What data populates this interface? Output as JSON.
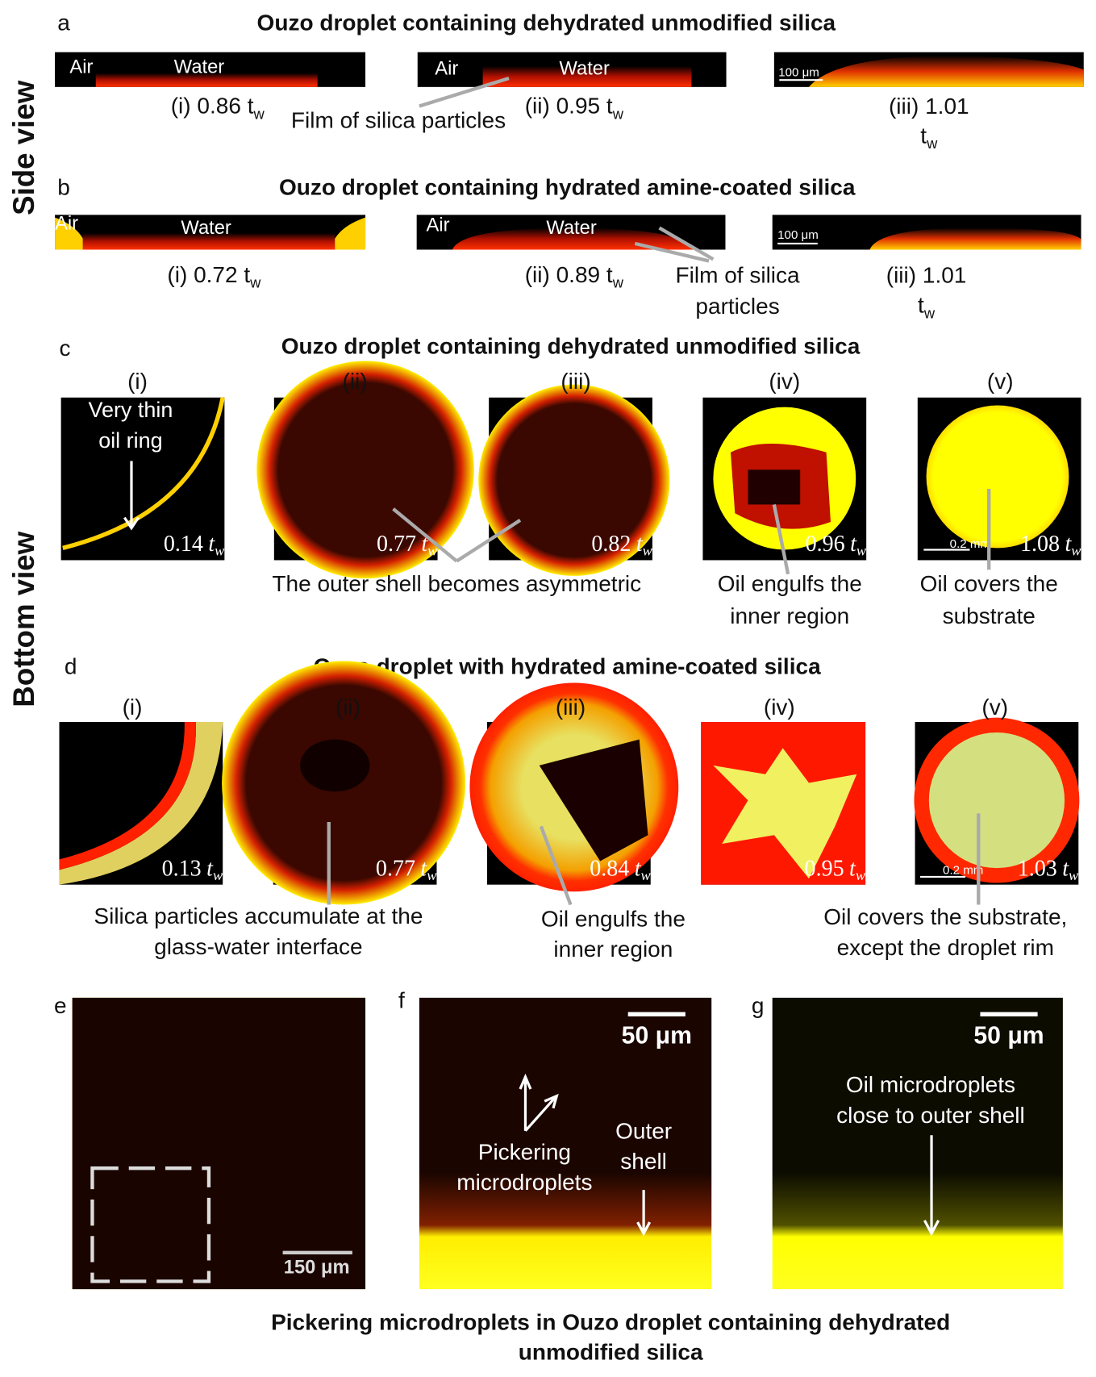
{
  "side_view": "Side view",
  "bottom_view": "Bottom view",
  "panel_a": {
    "letter": "a",
    "title": "Ouzo droplet containing dehydrated unmodified silica",
    "image_labels": [
      [
        "Air",
        "Water"
      ],
      [
        "Air",
        "Water"
      ]
    ],
    "scale_bar": "100 μm",
    "captions": [
      {
        "text": "(i) 0.86 t",
        "sub": "w"
      },
      {
        "text": "(ii) 0.95 t",
        "sub": "w"
      },
      {
        "lines": [
          "(iii) 1.01",
          "t"
        ],
        "sub": "w"
      }
    ],
    "annotation": "Film of silica particles"
  },
  "panel_b": {
    "letter": "b",
    "title": "Ouzo droplet containing hydrated amine-coated silica",
    "image_labels": [
      [
        "Air",
        "Water"
      ],
      [
        "Air",
        "Water"
      ]
    ],
    "scale_bar": "100 μm",
    "captions": [
      {
        "text": "(i) 0.72 t",
        "sub": "w"
      },
      {
        "text": "(ii) 0.89 t",
        "sub": "w"
      },
      {
        "lines": [
          "(iii) 1.01",
          "t"
        ],
        "sub": "w"
      }
    ],
    "annotation": [
      "Film of silica",
      "particles"
    ]
  },
  "panel_c": {
    "letter": "c",
    "title": "Ouzo droplet containing dehydrated unmodified silica",
    "roman": [
      "(i)",
      "(ii)",
      "(iii)",
      "(iv)",
      "(v)"
    ],
    "times": [
      {
        "value": "0.14",
        "var": "t",
        "sub": "w"
      },
      {
        "value": "0.77",
        "var": "t",
        "sub": "w"
      },
      {
        "value": "0.82",
        "var": "t",
        "sub": "w"
      },
      {
        "value": "0.96",
        "var": "t",
        "sub": "w"
      },
      {
        "value": "1.08",
        "var": "t",
        "sub": "w"
      }
    ],
    "inset_label": [
      "Very thin",
      "oil ring"
    ],
    "scale_bar": "0.2 mm",
    "captions": [
      [
        "The outer shell becomes asymmetric"
      ],
      [
        "Oil engulfs the",
        "inner region"
      ],
      [
        "Oil covers the",
        "substrate"
      ]
    ]
  },
  "panel_d": {
    "letter": "d",
    "title": "Ouzo droplet with hydrated amine-coated silica",
    "roman": [
      "(i)",
      "(ii)",
      "(iii)",
      "(iv)",
      "(v)"
    ],
    "times": [
      {
        "value": "0.13",
        "var": "t",
        "sub": "w"
      },
      {
        "value": "0.77",
        "var": "t",
        "sub": "w"
      },
      {
        "value": "0.84",
        "var": "t",
        "sub": "w"
      },
      {
        "value": "0.95",
        "var": "t",
        "sub": "w"
      },
      {
        "value": "1.03",
        "var": "t",
        "sub": "w"
      }
    ],
    "scale_bar": "0.2 mm",
    "captions": [
      [
        "Silica particles accumulate at the",
        "glass-water interface"
      ],
      [
        "Oil engulfs the",
        "inner region"
      ],
      [
        "Oil covers the substrate,",
        "except the droplet rim"
      ]
    ]
  },
  "panel_e": {
    "letter": "e",
    "scale_bar": "150 μm"
  },
  "panel_f": {
    "letter": "f",
    "scale_bar": "50 μm",
    "annotations": [
      [
        "Pickering",
        "microdroplets"
      ],
      [
        "Outer",
        "shell"
      ]
    ]
  },
  "panel_g": {
    "letter": "g",
    "scale_bar": "50 μm",
    "annotation": [
      "Oil microdroplets",
      "close to outer shell"
    ]
  },
  "footer": [
    "Pickering microdroplets in Ouzo droplet containing dehydrated",
    "unmodified silica"
  ]
}
